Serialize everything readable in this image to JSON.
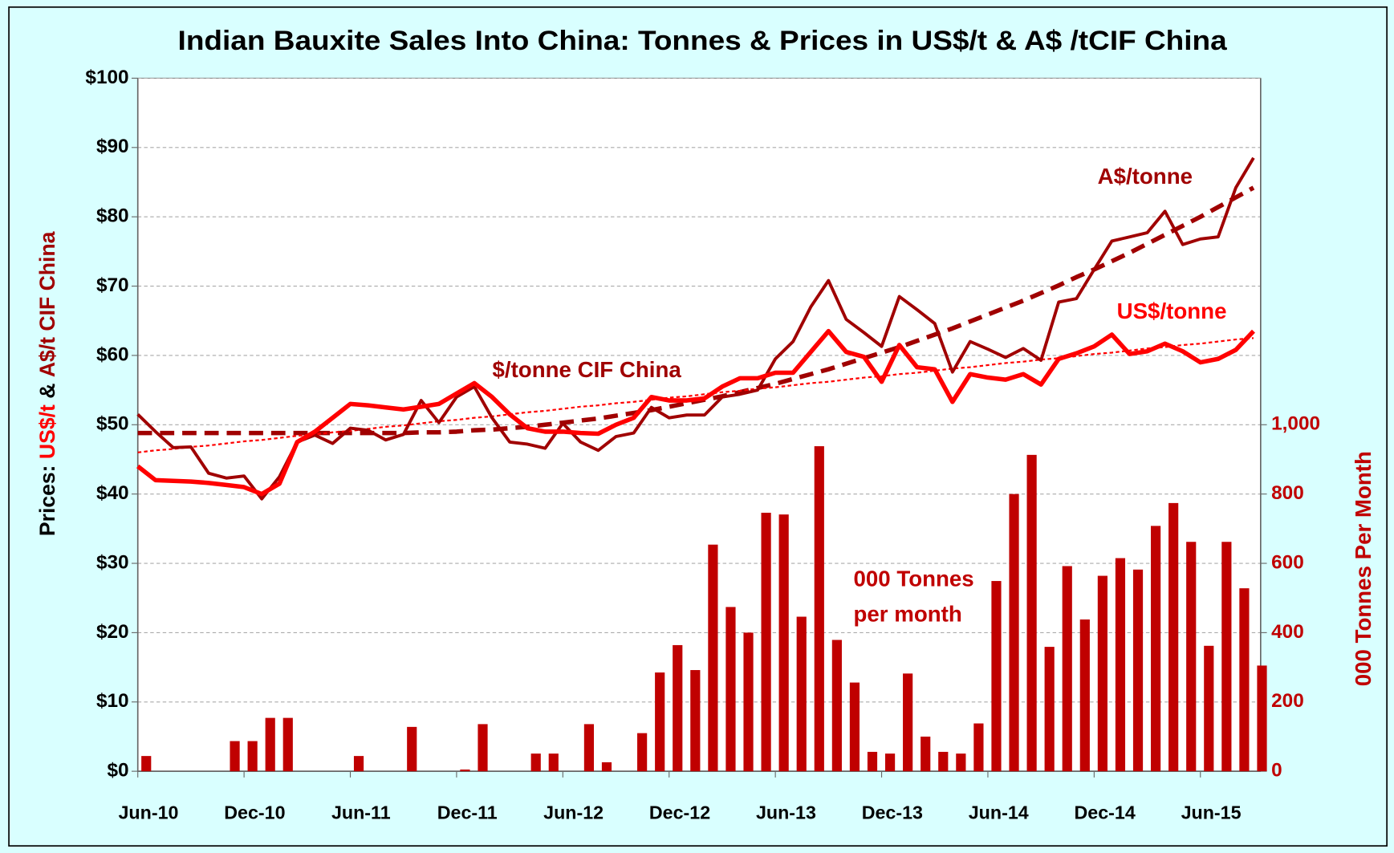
{
  "chart_data": {
    "type": "bar+line",
    "title": "Indian Bauxite Sales Into China: Tonnes & Prices in US$/t & A$ /tCIF China",
    "ylabel": [
      "Prices: ",
      "US$/t",
      " & ",
      "A$/t CIF China"
    ],
    "ylabel_colors": [
      "#000000",
      "#ff0000",
      "#000000",
      "#a00000"
    ],
    "y2label": "000 Tonnes Per Month",
    "categories": [
      "Jun-10",
      null,
      null,
      null,
      null,
      null,
      "Dec-10",
      null,
      null,
      null,
      null,
      null,
      "Jun-11",
      null,
      null,
      null,
      null,
      null,
      "Dec-11",
      null,
      null,
      null,
      null,
      null,
      "Jun-12",
      null,
      null,
      null,
      null,
      null,
      "Dec-12",
      null,
      null,
      null,
      null,
      null,
      "Jun-13",
      null,
      null,
      null,
      null,
      null,
      "Dec-13",
      null,
      null,
      null,
      null,
      null,
      "Jun-14",
      null,
      null,
      null,
      null,
      null,
      "Dec-14",
      null,
      null,
      null,
      null,
      null,
      "Jun-15",
      null,
      null,
      null
    ],
    "series": [
      {
        "type": "bar",
        "axis": "y2",
        "color": "#c00000",
        "values": [
          44,
          0,
          0,
          0,
          0,
          87,
          87,
          154,
          154,
          0,
          0,
          0,
          44,
          0,
          0,
          128,
          0,
          0,
          5,
          136,
          0,
          0,
          51,
          51,
          0,
          136,
          26,
          0,
          110,
          285,
          364,
          292,
          654,
          474,
          400,
          746,
          741,
          446,
          938,
          379,
          256,
          56,
          51,
          282,
          100,
          56,
          51,
          138,
          549,
          800,
          913,
          359,
          592,
          438,
          564,
          615,
          582,
          708,
          774,
          662,
          362,
          662,
          528,
          305
        ]
      },
      {
        "type": "line",
        "color": "#a00000",
        "style": "dashed",
        "values": [
          48.8,
          48.8,
          48.8,
          48.8,
          48.8,
          48.8,
          48.8,
          48.8,
          48.8,
          48.8,
          48.8,
          48.8,
          48.8,
          48.8,
          48.8,
          48.8,
          48.9,
          48.9,
          49.0,
          49.2,
          49.3,
          49.5,
          49.7,
          50.0,
          50.3,
          50.6,
          50.9,
          51.3,
          51.7,
          52.1,
          52.6,
          53.1,
          53.6,
          54.1,
          54.7,
          55.3,
          55.9,
          56.6,
          57.3,
          58.0,
          58.8,
          59.6,
          60.4,
          61.2,
          62.1,
          63.0,
          63.9,
          64.9,
          65.9,
          66.9,
          67.9,
          69.0,
          70.1,
          71.3,
          72.4,
          73.6,
          74.8,
          76.1,
          77.4,
          78.7,
          80.0,
          81.4,
          82.8,
          84.2
        ]
      },
      {
        "type": "line",
        "color": "#ff0000",
        "style": "dotted",
        "values": [
          46.0,
          46.3,
          46.5,
          46.8,
          47.0,
          47.3,
          47.6,
          47.8,
          48.1,
          48.4,
          48.6,
          48.9,
          49.1,
          49.4,
          49.7,
          49.9,
          50.2,
          50.5,
          50.7,
          51.0,
          51.2,
          51.5,
          51.8,
          52.0,
          52.3,
          52.6,
          52.8,
          53.1,
          53.3,
          53.6,
          53.9,
          54.1,
          54.4,
          54.7,
          54.9,
          55.2,
          55.4,
          55.7,
          56.0,
          56.2,
          56.5,
          56.8,
          57.0,
          57.3,
          57.5,
          57.8,
          58.1,
          58.3,
          58.6,
          58.9,
          59.1,
          59.4,
          59.6,
          59.9,
          60.2,
          60.4,
          60.7,
          61.0,
          61.2,
          61.5,
          61.7,
          62.0,
          62.3,
          62.5
        ]
      },
      {
        "type": "line",
        "color": "#a00000",
        "style": "solid",
        "values": [
          51.5,
          49,
          46.7,
          46.8,
          43,
          42.3,
          42.6,
          39.3,
          42.5,
          47.5,
          48.5,
          47.3,
          49.5,
          49.2,
          47.8,
          48.6,
          53.5,
          50.3,
          54,
          55.5,
          51,
          47.5,
          47.2,
          46.6,
          50.2,
          47.5,
          46.3,
          48.3,
          48.8,
          52.5,
          51,
          51.4,
          51.4,
          54,
          54.4,
          55,
          59.5,
          62,
          67,
          70.8,
          65.2,
          63.3,
          61.3,
          68.5,
          66.6,
          64.6,
          57.6,
          62,
          60.9,
          59.7,
          61,
          59.3,
          67.7,
          68.2,
          72.4,
          76.5,
          77.1,
          77.7,
          80.8,
          76,
          76.8,
          77.1,
          84.2,
          88.5
        ]
      },
      {
        "type": "line",
        "color": "#ff0000",
        "style": "thick",
        "values": [
          44,
          42,
          41.9,
          41.8,
          41.6,
          41.3,
          41,
          40,
          41.5,
          47.5,
          49,
          51,
          53,
          52.8,
          52.5,
          52.2,
          52.6,
          53,
          54.5,
          56,
          54,
          51.5,
          49.5,
          49,
          49,
          48.8,
          48.7,
          50,
          51,
          54,
          53.5,
          53.5,
          53.8,
          55.5,
          56.7,
          56.7,
          57.5,
          57.5,
          60.5,
          63.5,
          60.5,
          59.8,
          56.2,
          61.5,
          58.3,
          58,
          53.3,
          57.3,
          56.8,
          56.5,
          57.3,
          55.8,
          59.5,
          60.3,
          61.3,
          63,
          60.2,
          60.6,
          61.7,
          60.6,
          59,
          59.5,
          60.8,
          63.5
        ]
      }
    ],
    "ylim": [
      0,
      100
    ],
    "yticks": [
      {
        "value": 0,
        "label": "$0"
      },
      {
        "value": 10,
        "label": "$10"
      },
      {
        "value": 20,
        "label": "$20"
      },
      {
        "value": 30,
        "label": "$30"
      },
      {
        "value": 40,
        "label": "$40"
      },
      {
        "value": 50,
        "label": "$50"
      },
      {
        "value": 60,
        "label": "$60"
      },
      {
        "value": 70,
        "label": "$70"
      },
      {
        "value": 80,
        "label": "$80"
      },
      {
        "value": 90,
        "label": "$90"
      },
      {
        "value": 100,
        "label": "$100"
      }
    ],
    "y2lim": [
      0,
      2000
    ],
    "y2ticks": [
      0,
      200,
      400,
      600,
      800,
      {
        "value": 1000,
        "label": "1,000"
      }
    ],
    "grid": true,
    "annotations": [
      {
        "text": "A$/tonne",
        "color": "#a00000"
      },
      {
        "text": "US$/tonne",
        "color": "#ff0000"
      },
      {
        "text": "$/tonne CIF China",
        "color": "#a00000"
      },
      {
        "text": "000 Tonnes",
        "color": "#c00000"
      },
      {
        "text": "per month",
        "color": "#c00000"
      }
    ]
  }
}
